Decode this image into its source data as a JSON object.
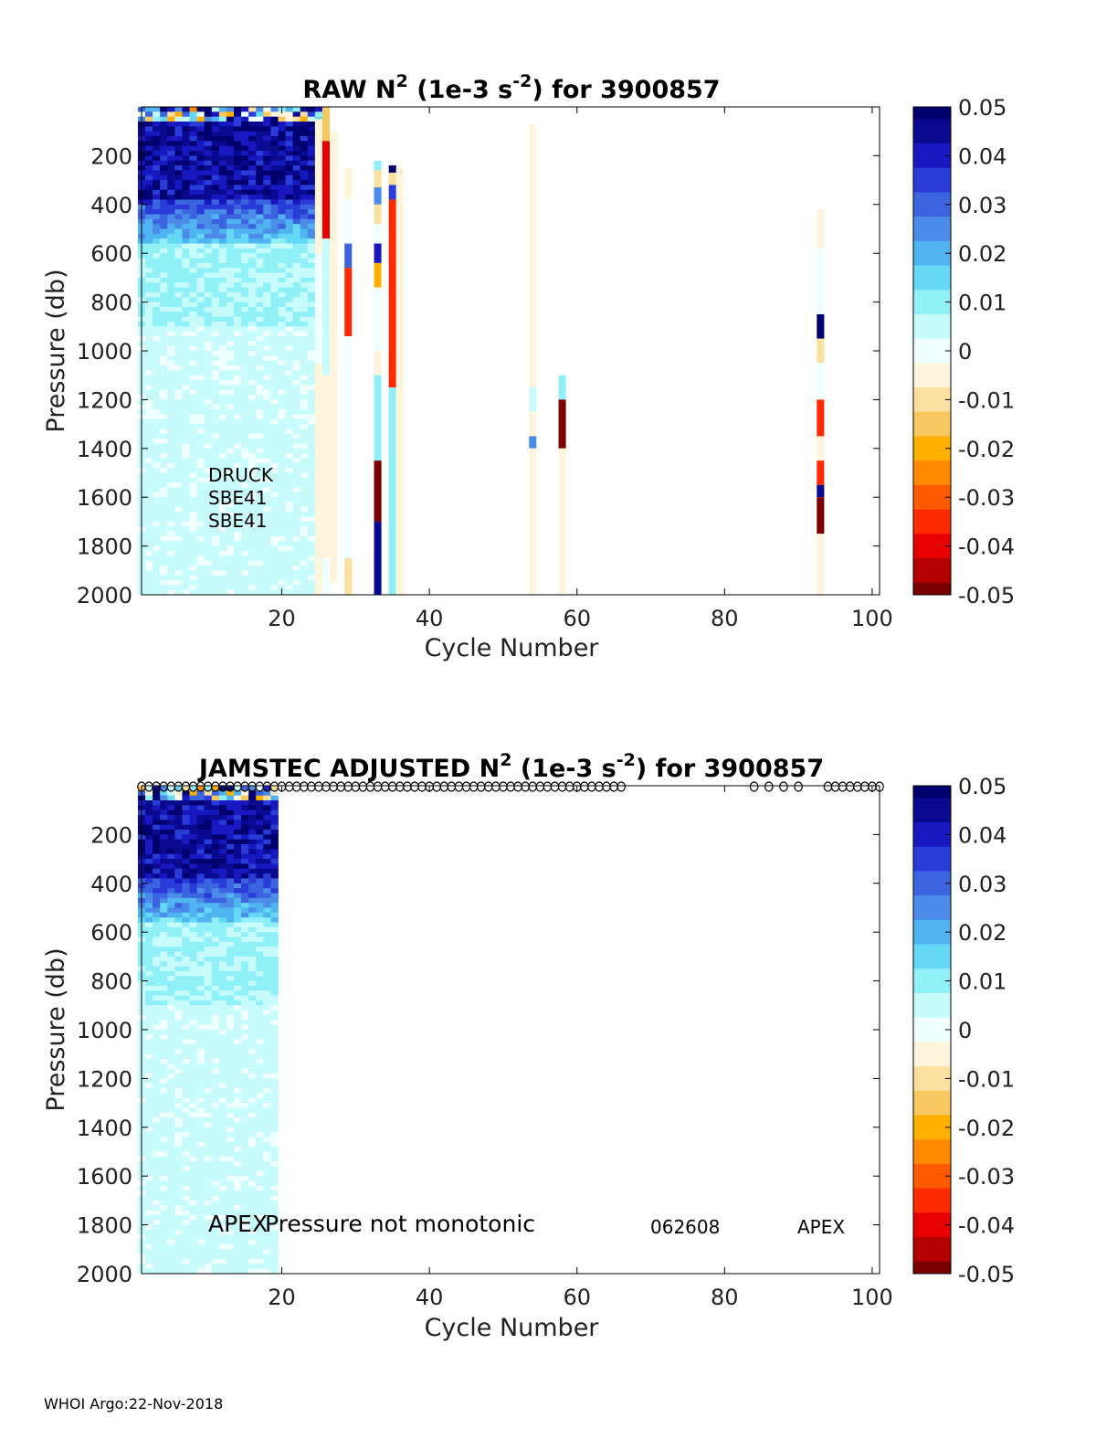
{
  "footer": "WHOI Argo:22-Nov-2018",
  "colors": {
    "colormap": [
      "#7a0000",
      "#b40000",
      "#e60000",
      "#ff2a00",
      "#ff5a00",
      "#ff8a00",
      "#ffb000",
      "#f8c860",
      "#fce0a0",
      "#fff4dc",
      "#f0ffff",
      "#c8fcfc",
      "#90f0f8",
      "#64d8f4",
      "#50b4f0",
      "#4a8ce8",
      "#3c64e0",
      "#2a3cd8",
      "#1818c0",
      "#0a0a90",
      "#00006e"
    ],
    "axis": "#000000"
  },
  "chart_data": [
    {
      "type": "heatmap",
      "title_main": "RAW N",
      "title_sup": "2",
      "title_mid": " (1e-3 s",
      "title_sup2": "-2",
      "title_end": ") for 3900857",
      "xlabel": "Cycle Number",
      "ylabel": "Pressure (db)",
      "xlim": [
        1,
        101
      ],
      "ylim": [
        2000,
        0
      ],
      "xticks": [
        "20",
        "40",
        "60",
        "80",
        "100"
      ],
      "yticks": [
        "200",
        "400",
        "600",
        "800",
        "1000",
        "1200",
        "1400",
        "1600",
        "1800",
        "2000"
      ],
      "colorbar_ticks": [
        "0.05",
        "0.04",
        "0.03",
        "0.02",
        "0.01",
        "0",
        "-0.01",
        "-0.02",
        "-0.03",
        "-0.04",
        "-0.05"
      ],
      "clim": [
        -0.05,
        0.05
      ],
      "dense_region_cycles": [
        1,
        25
      ],
      "annotations": [
        "DRUCK",
        "SBE41",
        "SBE41"
      ],
      "sparse_columns": [
        {
          "cycle": 25,
          "segments": [
            [
              50,
              600,
              -0.006
            ],
            [
              600,
              1050,
              -0.002
            ],
            [
              1050,
              1850,
              -0.004
            ],
            [
              1850,
              2000,
              -0.006
            ]
          ]
        },
        {
          "cycle": 26,
          "segments": [
            [
              0,
              140,
              -0.014
            ],
            [
              140,
              540,
              -0.04
            ],
            [
              540,
              1100,
              0.006
            ],
            [
              1100,
              1850,
              -0.004
            ],
            [
              1850,
              2000,
              -0.002
            ]
          ]
        },
        {
          "cycle": 27,
          "segments": [
            [
              100,
              1300,
              -0.004
            ],
            [
              1300,
              1950,
              -0.005
            ]
          ]
        },
        {
          "cycle": 29,
          "segments": [
            [
              250,
              380,
              -0.007
            ],
            [
              380,
              560,
              -0.001
            ],
            [
              560,
              660,
              0.032
            ],
            [
              660,
              940,
              -0.035
            ],
            [
              940,
              1850,
              -0.002
            ],
            [
              1850,
              2000,
              -0.012
            ]
          ]
        },
        {
          "cycle": 33,
          "segments": [
            [
              220,
              260,
              0.008
            ],
            [
              260,
              330,
              -0.012
            ],
            [
              330,
              400,
              0.026
            ],
            [
              400,
              480,
              -0.012
            ],
            [
              480,
              560,
              0.002
            ],
            [
              560,
              640,
              0.04
            ],
            [
              640,
              740,
              -0.018
            ],
            [
              740,
              1000,
              0.002
            ],
            [
              1000,
              1100,
              -0.004
            ],
            [
              1100,
              1450,
              0.008
            ],
            [
              1450,
              1700,
              -0.048
            ],
            [
              1700,
              2000,
              0.047
            ]
          ]
        },
        {
          "cycle": 35,
          "segments": [
            [
              240,
              270,
              0.048
            ],
            [
              270,
              320,
              -0.012
            ],
            [
              320,
              380,
              0.035
            ],
            [
              380,
              1150,
              -0.035
            ],
            [
              1150,
              2000,
              0.01
            ]
          ]
        },
        {
          "cycle": 36,
          "segments": [
            [
              250,
              2000,
              -0.003
            ]
          ]
        },
        {
          "cycle": 54,
          "segments": [
            [
              70,
              1150,
              -0.003
            ],
            [
              1150,
              1250,
              0.003
            ],
            [
              1250,
              1350,
              -0.004
            ],
            [
              1350,
              1400,
              0.026
            ],
            [
              1400,
              2000,
              -0.003
            ]
          ]
        },
        {
          "cycle": 58,
          "segments": [
            [
              1100,
              1200,
              0.008
            ],
            [
              1200,
              1400,
              -0.048
            ],
            [
              1400,
              2000,
              -0.003
            ]
          ]
        },
        {
          "cycle": 93,
          "segments": [
            [
              420,
              580,
              -0.005
            ],
            [
              580,
              850,
              -0.002
            ],
            [
              850,
              950,
              0.048
            ],
            [
              950,
              1050,
              -0.012
            ],
            [
              1050,
              1200,
              -0.002
            ],
            [
              1200,
              1350,
              -0.035
            ],
            [
              1350,
              1450,
              -0.004
            ],
            [
              1450,
              1550,
              -0.035
            ],
            [
              1550,
              1600,
              0.047
            ],
            [
              1600,
              1750,
              -0.048
            ],
            [
              1750,
              2000,
              -0.003
            ]
          ]
        }
      ]
    },
    {
      "type": "heatmap",
      "title_main": "JAMSTEC  ADJUSTED N",
      "title_sup": "2",
      "title_mid": " (1e-3 s",
      "title_sup2": "-2",
      "title_end": ") for 3900857",
      "xlabel": "Cycle Number",
      "ylabel": "Pressure (db)",
      "xlim": [
        1,
        101
      ],
      "ylim": [
        2000,
        0
      ],
      "xticks": [
        "20",
        "40",
        "60",
        "80",
        "100"
      ],
      "yticks": [
        "200",
        "400",
        "600",
        "800",
        "1000",
        "1200",
        "1400",
        "1600",
        "1800",
        "2000"
      ],
      "colorbar_ticks": [
        "0.05",
        "0.04",
        "0.03",
        "0.02",
        "0.01",
        "0",
        "-0.01",
        "-0.02",
        "-0.03",
        "-0.04",
        "-0.05"
      ],
      "clim": [
        -0.05,
        0.05
      ],
      "dense_region_cycles": [
        1,
        19
      ],
      "annotations": [
        "APEX",
        "Pressure not monotonic",
        "062608",
        "APEX"
      ],
      "marker_cycles": [
        1,
        2,
        3,
        4,
        5,
        6,
        7,
        8,
        9,
        10,
        11,
        12,
        13,
        14,
        15,
        16,
        17,
        18,
        19,
        20,
        21,
        22,
        23,
        24,
        25,
        26,
        27,
        28,
        29,
        30,
        31,
        32,
        33,
        34,
        35,
        36,
        37,
        38,
        39,
        40,
        41,
        42,
        43,
        44,
        45,
        46,
        47,
        48,
        49,
        50,
        51,
        52,
        53,
        54,
        55,
        56,
        57,
        58,
        59,
        60,
        61,
        62,
        63,
        64,
        65,
        66,
        84,
        86,
        88,
        90,
        94,
        95,
        96,
        97,
        98,
        99,
        100,
        101
      ]
    }
  ]
}
